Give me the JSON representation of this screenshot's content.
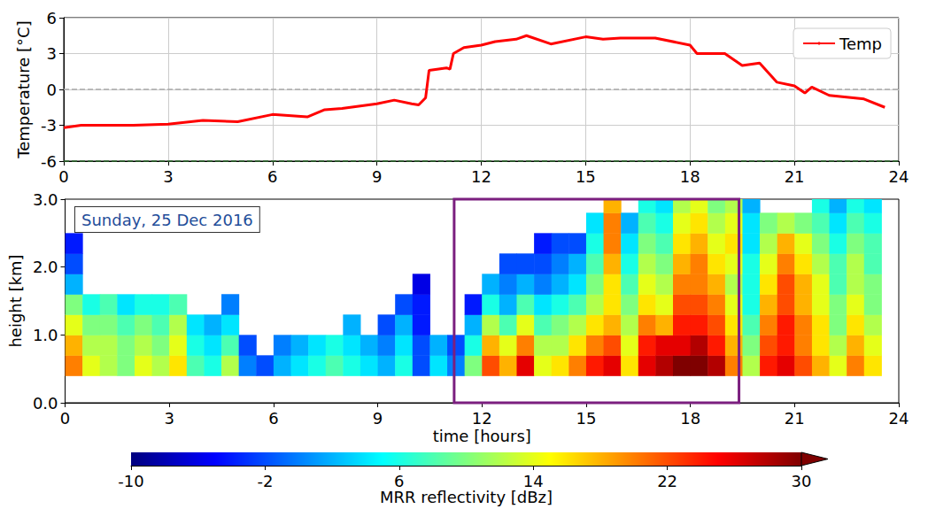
{
  "chart_data": [
    {
      "type": "line",
      "ylabel": "Temperature [°C]",
      "x": [
        0,
        0.5,
        1,
        2,
        3,
        4,
        5,
        6,
        7,
        7.5,
        8,
        9,
        9.5,
        10,
        10.2,
        10.4,
        10.5,
        11,
        11.1,
        11.2,
        11.5,
        12,
        12.4,
        13,
        13.3,
        14,
        15,
        15.5,
        16,
        17,
        18,
        18.2,
        19,
        19.5,
        20,
        20.5,
        21,
        21.3,
        21.5,
        22,
        23,
        23.6
      ],
      "series": [
        {
          "name": "Temp",
          "color": "#ff0000",
          "line_style": "solid",
          "values": [
            -3.2,
            -3.0,
            -3.0,
            -3.0,
            -2.9,
            -2.6,
            -2.7,
            -2.1,
            -2.3,
            -1.7,
            -1.6,
            -1.2,
            -0.9,
            -1.2,
            -1.3,
            -0.7,
            1.6,
            1.8,
            1.7,
            3.0,
            3.5,
            3.7,
            4.0,
            4.2,
            4.5,
            3.8,
            4.4,
            4.2,
            4.3,
            4.3,
            3.7,
            3.0,
            3.0,
            2.0,
            2.2,
            0.6,
            0.3,
            -0.3,
            0.2,
            -0.5,
            -0.8,
            -1.5
          ]
        }
      ],
      "xlim": [
        0,
        24
      ],
      "xticks": [
        0,
        3,
        6,
        9,
        12,
        15,
        18,
        21,
        24
      ],
      "ylim": [
        -6,
        6
      ],
      "yticks": [
        -6,
        -3,
        0,
        3,
        6
      ],
      "hlines": [
        {
          "y": 0,
          "color": "#aaaaaa"
        },
        {
          "y": -6,
          "color": "#2e6b2e"
        }
      ],
      "grid": true,
      "legend": "upper right"
    },
    {
      "type": "heatmap",
      "annotation": "Sunday, 25 Dec 2016",
      "xlabel": "time [hours]",
      "ylabel": "height [km]",
      "xlim": [
        0,
        24
      ],
      "xticks": [
        0,
        3,
        6,
        9,
        12,
        15,
        18,
        21,
        24
      ],
      "ylim": [
        0,
        3
      ],
      "yticks": [
        {
          "value": 0,
          "label": "0.0"
        },
        {
          "value": 1,
          "label": "1.0"
        },
        {
          "value": 2,
          "label": "2.0"
        },
        {
          "value": 3,
          "label": "3.0"
        }
      ],
      "grid": false,
      "time_bins": [
        0,
        0.5,
        1,
        1.5,
        2,
        2.5,
        3,
        3.5,
        4,
        4.5,
        5,
        5.5,
        6,
        6.5,
        7,
        7.5,
        8,
        8.5,
        9,
        9.5,
        10,
        10.5,
        11,
        11.5,
        12,
        12.5,
        13,
        13.5,
        14,
        14.5,
        15,
        15.5,
        16,
        16.5,
        17,
        17.5,
        18,
        18.5,
        19,
        19.5,
        20,
        20.5,
        21,
        21.5,
        22,
        22.5,
        23,
        23.5,
        24
      ],
      "height_bins": [
        0.4,
        0.7,
        1.0,
        1.3,
        1.6,
        1.9,
        2.2,
        2.5,
        2.8,
        3.0
      ],
      "reflectivity": [
        [
          20,
          18,
          14,
          10,
          2,
          -2,
          -4,
          null,
          null
        ],
        [
          14,
          12,
          10,
          6,
          null,
          null,
          null,
          null,
          null
        ],
        [
          12,
          12,
          10,
          8,
          null,
          null,
          null,
          null,
          null
        ],
        [
          10,
          10,
          8,
          4,
          null,
          null,
          null,
          null,
          null
        ],
        [
          14,
          12,
          10,
          6,
          null,
          null,
          null,
          null,
          null
        ],
        [
          12,
          10,
          8,
          6,
          null,
          null,
          null,
          null,
          null
        ],
        [
          16,
          14,
          12,
          8,
          null,
          null,
          null,
          null,
          null
        ],
        [
          8,
          6,
          4,
          null,
          null,
          null,
          null,
          null,
          null
        ],
        [
          6,
          4,
          2,
          null,
          null,
          null,
          null,
          null,
          null
        ],
        [
          12,
          8,
          4,
          0,
          null,
          null,
          null,
          null,
          null
        ],
        [
          0,
          -2,
          null,
          null,
          null,
          null,
          null,
          null,
          null
        ],
        [
          -2,
          null,
          null,
          null,
          null,
          null,
          null,
          null,
          null
        ],
        [
          2,
          0,
          null,
          null,
          null,
          null,
          null,
          null,
          null
        ],
        [
          4,
          2,
          null,
          null,
          null,
          null,
          null,
          null,
          null
        ],
        [
          6,
          4,
          null,
          null,
          null,
          null,
          null,
          null,
          null
        ],
        [
          8,
          6,
          null,
          null,
          null,
          null,
          null,
          null,
          null
        ],
        [
          6,
          4,
          2,
          null,
          null,
          null,
          null,
          null,
          null
        ],
        [
          4,
          2,
          null,
          null,
          null,
          null,
          null,
          null,
          null
        ],
        [
          2,
          0,
          -2,
          null,
          null,
          null,
          null,
          null,
          null
        ],
        [
          6,
          4,
          2,
          -2,
          null,
          null,
          null,
          null,
          null
        ],
        [
          -2,
          -2,
          -4,
          -4,
          -6,
          null,
          null,
          null,
          null
        ],
        [
          4,
          2,
          null,
          null,
          null,
          null,
          null,
          null,
          null
        ],
        [
          0,
          -2,
          null,
          null,
          null,
          null,
          null,
          null,
          null
        ],
        [
          10,
          6,
          2,
          -4,
          null,
          null,
          null,
          null,
          null
        ],
        [
          22,
          18,
          12,
          6,
          2,
          null,
          null,
          null,
          null
        ],
        [
          18,
          14,
          8,
          2,
          0,
          -2,
          null,
          null,
          null
        ],
        [
          26,
          20,
          14,
          8,
          2,
          -2,
          null,
          null,
          null
        ],
        [
          14,
          12,
          8,
          4,
          0,
          -2,
          -4,
          null,
          null
        ],
        [
          16,
          12,
          10,
          6,
          2,
          0,
          -2,
          null,
          null
        ],
        [
          20,
          16,
          12,
          8,
          4,
          2,
          -2,
          null,
          null
        ],
        [
          24,
          20,
          16,
          12,
          10,
          8,
          6,
          4,
          null
        ],
        [
          26,
          22,
          18,
          16,
          16,
          18,
          20,
          20,
          18
        ],
        [
          16,
          14,
          12,
          10,
          8,
          6,
          4,
          2,
          null
        ],
        [
          26,
          24,
          20,
          16,
          14,
          12,
          10,
          8,
          6
        ],
        [
          28,
          26,
          18,
          14,
          12,
          10,
          8,
          6,
          4
        ],
        [
          30,
          26,
          24,
          22,
          20,
          18,
          16,
          14,
          12
        ],
        [
          30,
          28,
          24,
          22,
          20,
          20,
          18,
          16,
          14
        ],
        [
          28,
          24,
          22,
          20,
          18,
          16,
          14,
          12,
          10
        ],
        [
          20,
          18,
          16,
          14,
          12,
          14,
          16,
          14,
          12
        ],
        [
          12,
          10,
          8,
          6,
          6,
          6,
          4,
          4,
          2
        ],
        [
          24,
          22,
          20,
          18,
          16,
          14,
          12,
          10,
          null
        ],
        [
          26,
          24,
          24,
          22,
          22,
          20,
          18,
          12,
          null
        ],
        [
          22,
          20,
          20,
          18,
          18,
          16,
          14,
          10,
          null
        ],
        [
          18,
          16,
          16,
          14,
          14,
          12,
          10,
          8,
          6
        ],
        [
          14,
          12,
          10,
          10,
          8,
          8,
          6,
          4,
          2
        ],
        [
          20,
          18,
          16,
          14,
          12,
          12,
          10,
          8,
          6
        ],
        [
          16,
          14,
          12,
          10,
          10,
          8,
          8,
          6,
          4
        ],
        [
          null,
          null,
          null,
          null,
          null,
          null,
          null,
          null,
          null
        ]
      ],
      "colorbar": {
        "range": [
          -10,
          30
        ],
        "ticks": [
          -10,
          -2,
          6,
          14,
          22,
          30
        ],
        "label": "MRR reflectivity [dBz]"
      },
      "highlight": {
        "x": [
          11.2,
          19.4
        ],
        "color": "#7b1f7f"
      }
    }
  ]
}
